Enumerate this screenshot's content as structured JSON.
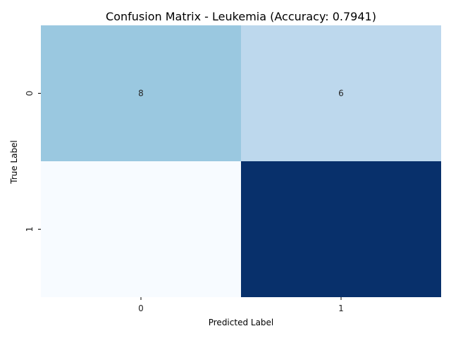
{
  "chart_data": {
    "type": "heatmap",
    "title": "Confusion Matrix - Leukemia (Accuracy: 0.7941)",
    "xlabel": "Predicted Label",
    "ylabel": "True Label",
    "x_categories": [
      "0",
      "1"
    ],
    "y_categories": [
      "0",
      "1"
    ],
    "colormap": "Blues",
    "colorbar": false,
    "cells": [
      {
        "row": 0,
        "col": 0,
        "value": 8,
        "label": "8",
        "color": "#9ac8e0"
      },
      {
        "row": 0,
        "col": 1,
        "value": 6,
        "label": "6",
        "color": "#bdd8ed"
      },
      {
        "row": 1,
        "col": 0,
        "value": 1,
        "label": "",
        "color": "#f7fbff"
      },
      {
        "row": 1,
        "col": 1,
        "value": 19,
        "label": "",
        "color": "#08306b"
      }
    ]
  }
}
